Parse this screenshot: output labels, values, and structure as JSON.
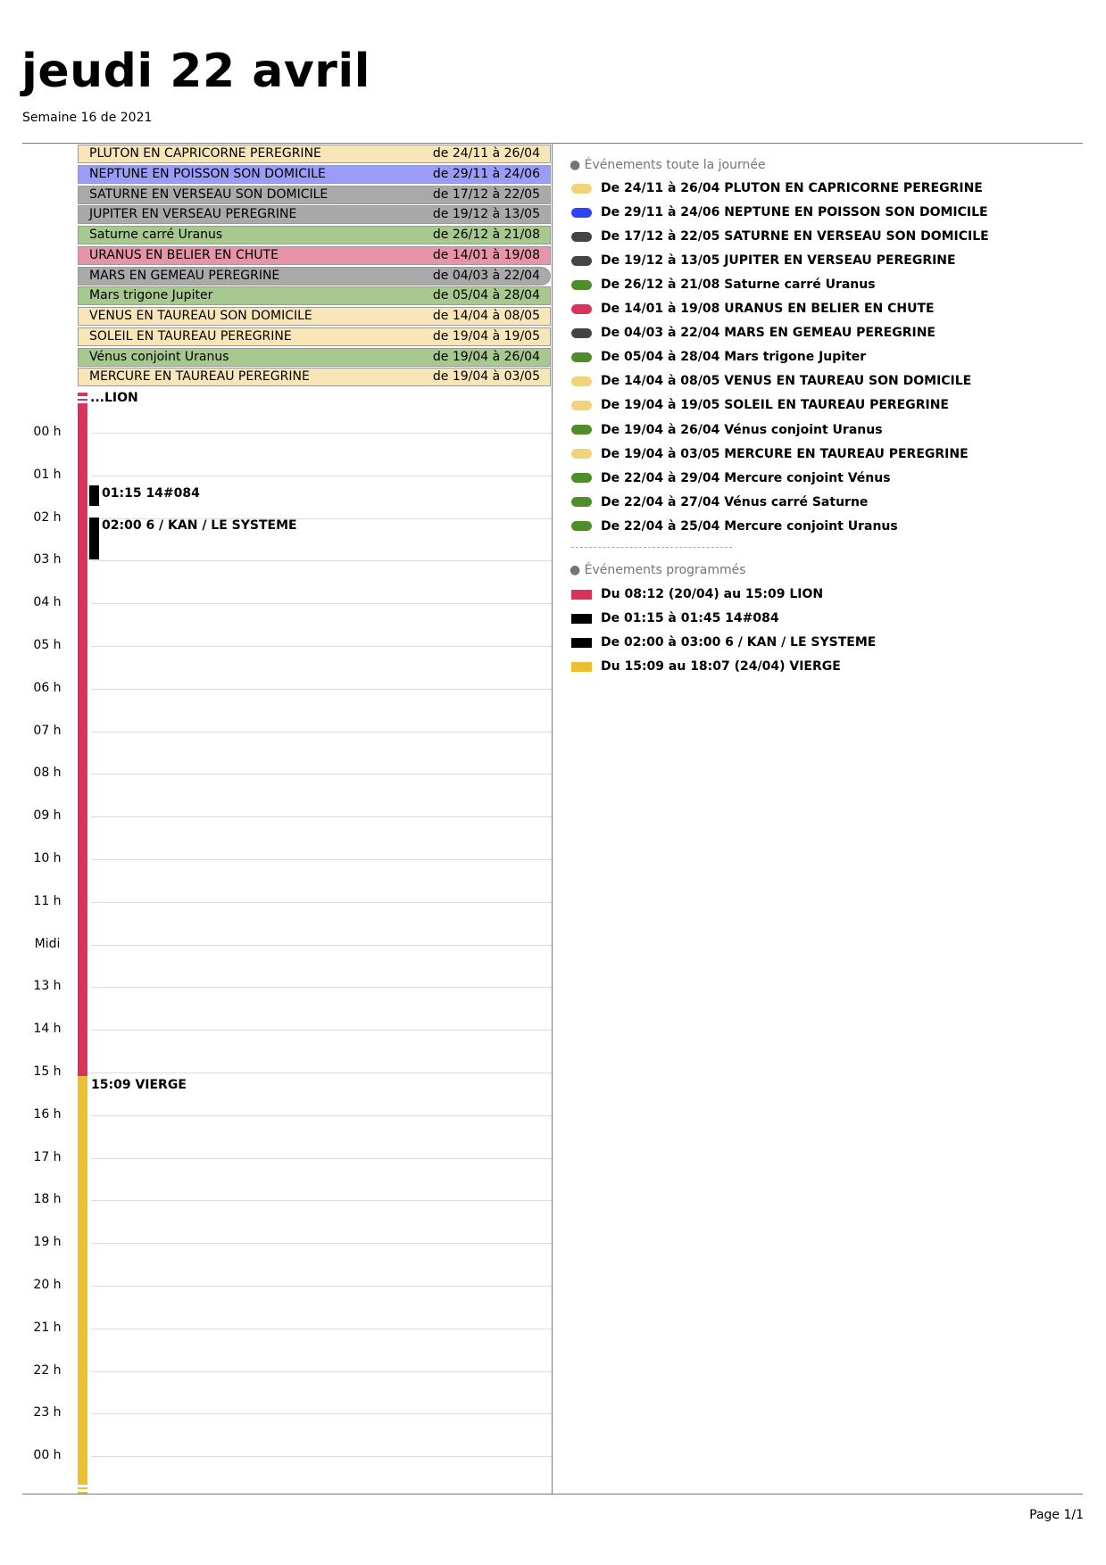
{
  "header": {
    "day_title": "jeudi 22 avril",
    "week_label": "Semaine 16 de 2021"
  },
  "all_day_events": [
    {
      "name": "PLUTON EN CAPRICORNE PEREGRINE",
      "range": "de 24/11 à 26/04",
      "color": "#f9e6b8"
    },
    {
      "name": "NEPTUNE EN POISSON SON DOMICILE",
      "range": "de 29/11 à 24/06",
      "color": "#9b9cf8"
    },
    {
      "name": "SATURNE EN VERSEAU SON DOMICILE",
      "range": "de 17/12 à 22/05",
      "color": "#a9a9a9"
    },
    {
      "name": "JUPITER EN VERSEAU PEREGRINE",
      "range": "de 19/12 à 13/05",
      "color": "#a9a9a9"
    },
    {
      "name": "Saturne carré Uranus",
      "range": "de 26/12 à 21/08",
      "color": "#a7c98f"
    },
    {
      "name": "URANUS EN BELIER EN CHUTE",
      "range": "de 14/01 à 19/08",
      "color": "#e794a8"
    },
    {
      "name": "MARS EN GEMEAU PEREGRINE",
      "range": "de 04/03 à 22/04",
      "color": "#a9a9a9"
    },
    {
      "name": "Mars trigone Jupiter",
      "range": "de 05/04 à 28/04",
      "color": "#a7c98f"
    },
    {
      "name": "VENUS EN TAUREAU SON DOMICILE",
      "range": "de 14/04 à 08/05",
      "color": "#f9e6b8"
    },
    {
      "name": "SOLEIL EN TAUREAU PEREGRINE",
      "range": "de 19/04 à 19/05",
      "color": "#f9e6b8"
    },
    {
      "name": "Vénus conjoint Uranus",
      "range": "de 19/04 à 26/04",
      "color": "#a7c98f"
    },
    {
      "name": "MERCURE EN TAUREAU PEREGRINE",
      "range": "de 19/04 à 03/05",
      "color": "#f9e6b8"
    }
  ],
  "hours": [
    "00 h",
    "01 h",
    "02 h",
    "03 h",
    "04 h",
    "05 h",
    "06 h",
    "07 h",
    "08 h",
    "09 h",
    "10 h",
    "11 h",
    "Midi",
    "13 h",
    "14 h",
    "15 h",
    "16 h",
    "17 h",
    "18 h",
    "19 h",
    "20 h",
    "21 h",
    "22 h",
    "23 h",
    "00 h"
  ],
  "timed_events": {
    "lion_label": "...LION",
    "event_14084_label": "01:15 14#084",
    "event_kan_label": "02:00 6 / KAN / LE SYSTEME",
    "vierge_label": "15:09 VIERGE"
  },
  "right_panel": {
    "all_day_header": "● Événements toute la journée",
    "scheduled_header": "● Événements programmés",
    "all_day_legend": [
      {
        "text": "De 24/11 à 26/04 PLUTON EN CAPRICORNE PEREGRINE",
        "color": "#f2d27a"
      },
      {
        "text": "De 29/11 à 24/06 NEPTUNE EN POISSON SON DOMICILE",
        "color": "#2f43f2"
      },
      {
        "text": "De 17/12 à 22/05 SATURNE EN VERSEAU SON DOMICILE",
        "color": "#444444"
      },
      {
        "text": "De 19/12 à 13/05 JUPITER EN VERSEAU PEREGRINE",
        "color": "#444444"
      },
      {
        "text": "De 26/12 à 21/08 Saturne carré Uranus",
        "color": "#4e8d2a"
      },
      {
        "text": "De 14/01 à 19/08 URANUS EN BELIER EN CHUTE",
        "color": "#d9325b"
      },
      {
        "text": "De 04/03 à 22/04 MARS EN GEMEAU PEREGRINE",
        "color": "#444444"
      },
      {
        "text": "De 05/04 à 28/04 Mars trigone Jupiter",
        "color": "#4e8d2a"
      },
      {
        "text": "De 14/04 à 08/05 VENUS EN TAUREAU SON DOMICILE",
        "color": "#f2d27a"
      },
      {
        "text": "De 19/04 à 19/05 SOLEIL EN TAUREAU PEREGRINE",
        "color": "#f2d27a"
      },
      {
        "text": "De 19/04 à 26/04 Vénus conjoint Uranus",
        "color": "#4e8d2a"
      },
      {
        "text": "De 19/04 à 03/05 MERCURE EN TAUREAU PEREGRINE",
        "color": "#f2d27a"
      },
      {
        "text": "De 22/04 à 29/04 Mercure conjoint Vénus",
        "color": "#4e8d2a"
      },
      {
        "text": "De 22/04 à 27/04 Vénus carré Saturne",
        "color": "#4e8d2a"
      },
      {
        "text": "De 22/04 à 25/04 Mercure conjoint Uranus",
        "color": "#4e8d2a"
      }
    ],
    "scheduled_legend": [
      {
        "text": "Du 08:12 (20/04) au 15:09 LION",
        "color": "#d9325b"
      },
      {
        "text": "De 01:15 à 01:45 14#084",
        "color": "#000000"
      },
      {
        "text": "De 02:00 à 03:00 6 / KAN / LE SYSTEME",
        "color": "#000000"
      },
      {
        "text": "Du 15:09 au 18:07 (24/04) VIERGE",
        "color": "#ebc12f"
      }
    ]
  },
  "footer": {
    "page": "Page 1/1"
  },
  "colors": {
    "lion_bar": "#d9325b",
    "vierge_bar": "#ebc12f",
    "timed_black": "#000000"
  }
}
